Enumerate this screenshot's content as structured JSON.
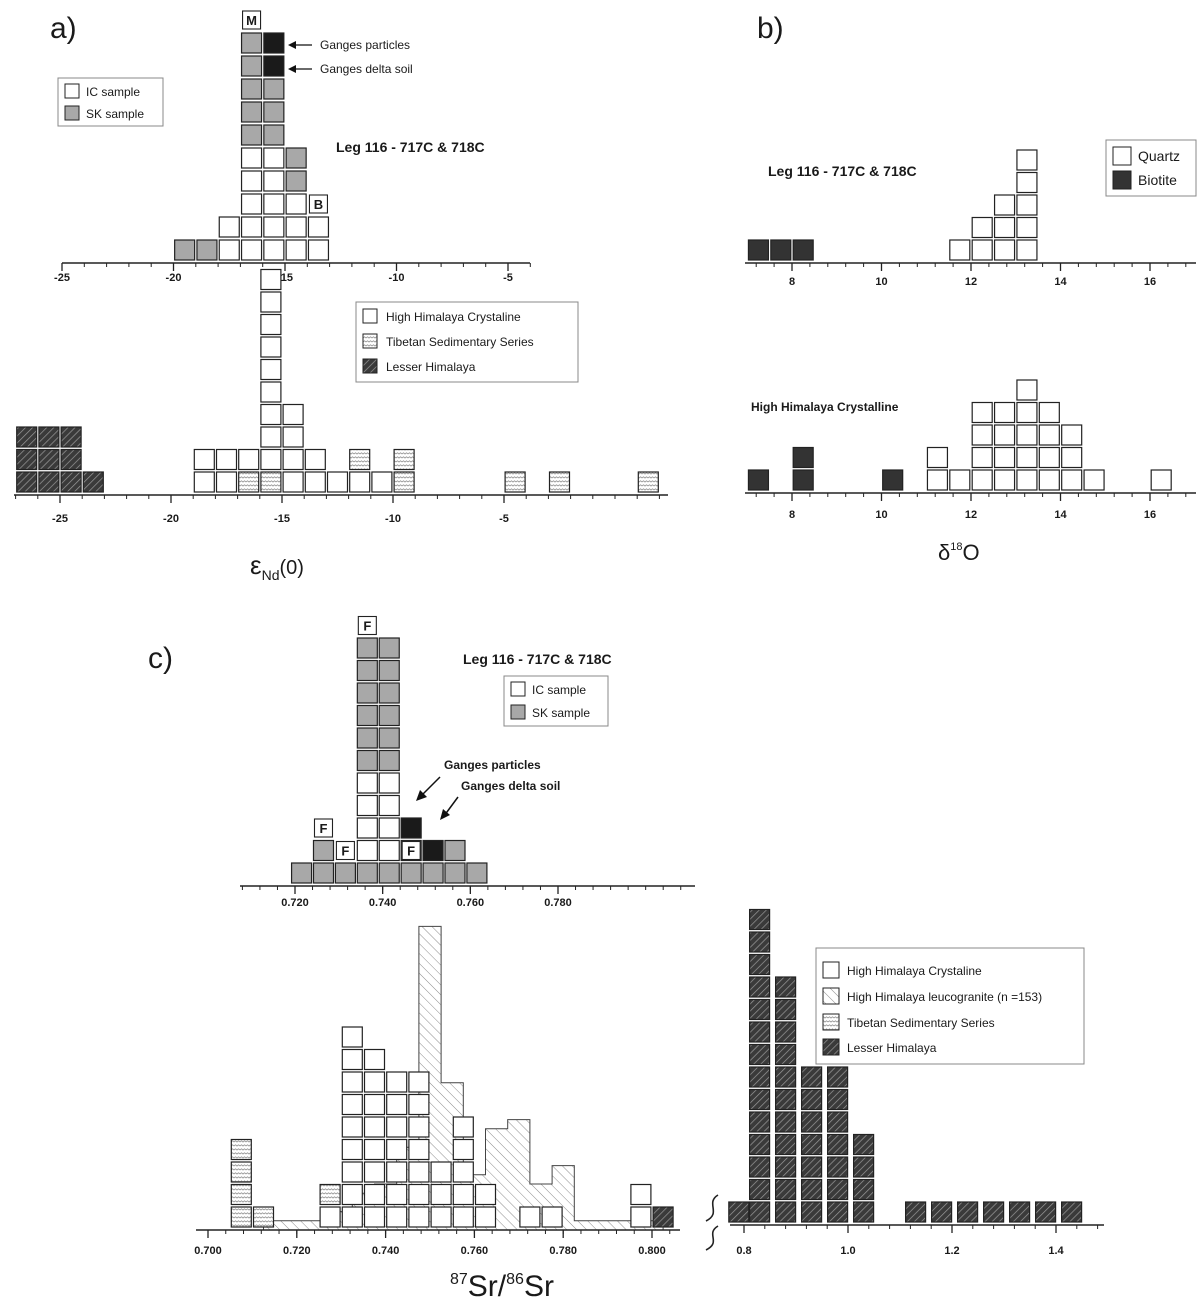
{
  "colors": {
    "open": "#ffffff",
    "sk": "#a8a8a8",
    "dark": "#1a1a1a",
    "stroke": "#222222",
    "hatch_dark_bg": "#3a3a3a",
    "hatch_light": "#bbbbbb"
  },
  "chart_data": [
    {
      "panel": "a",
      "label": "a)",
      "type": "bar",
      "title": "Leg 116 - 717C & 718C",
      "xlabel": "ε",
      "xlabel_sub": "Nd",
      "xlabel_suffix": "(0)",
      "upper": {
        "xlim": [
          -25,
          -4
        ],
        "ticks": [
          -25,
          -20,
          -15,
          -10,
          -5
        ],
        "tick_labels": [
          "-25",
          "-20",
          "-15",
          "-10",
          "-5"
        ],
        "legend": [
          "IC sample",
          "SK sample"
        ],
        "columns": [
          {
            "x": -19.5,
            "stack": [
              "sk"
            ]
          },
          {
            "x": -18.5,
            "stack": [
              "sk"
            ]
          },
          {
            "x": -17.5,
            "stack": [
              "ic",
              "ic"
            ]
          },
          {
            "x": -16.5,
            "stack": [
              "ic",
              "ic",
              "ic",
              "ic",
              "ic",
              "sk",
              "sk",
              "sk",
              "sk",
              "sk"
            ]
          },
          {
            "x": -15.5,
            "stack": [
              "ic",
              "ic",
              "ic",
              "ic",
              "ic",
              "sk",
              "sk",
              "sk",
              "dark",
              "dark"
            ]
          },
          {
            "x": -14.5,
            "stack": [
              "ic",
              "ic",
              "ic",
              "sk",
              "sk"
            ]
          },
          {
            "x": -13.5,
            "stack": [
              "ic",
              "ic"
            ]
          }
        ],
        "labels": [
          {
            "text": "M",
            "x": -16.5,
            "level": 10
          },
          {
            "text": "B",
            "x": -13.5,
            "level": 2
          }
        ],
        "annotations": [
          "Ganges particles",
          "Ganges delta soil"
        ]
      },
      "lower": {
        "xlim": [
          -27,
          0
        ],
        "ticks": [
          -25,
          -20,
          -15,
          -10,
          -5
        ],
        "tick_labels": [
          "-25",
          "-20",
          "-15",
          "-10",
          "-5"
        ],
        "legend": [
          "High Himalaya Crystaline",
          "Tibetan Sedimentary Series",
          "Lesser Himalaya"
        ],
        "columns": [
          {
            "x": -26.5,
            "stack": [
              "lh",
              "lh",
              "lh"
            ]
          },
          {
            "x": -25.5,
            "stack": [
              "lh",
              "lh",
              "lh"
            ]
          },
          {
            "x": -24.5,
            "stack": [
              "lh",
              "lh",
              "lh"
            ]
          },
          {
            "x": -23.5,
            "stack": [
              "lh"
            ]
          },
          {
            "x": -18.5,
            "stack": [
              "hhc",
              "hhc"
            ]
          },
          {
            "x": -17.5,
            "stack": [
              "hhc",
              "hhc"
            ]
          },
          {
            "x": -16.5,
            "stack": [
              "tss",
              "hhc"
            ]
          },
          {
            "x": -15.5,
            "stack": [
              "tss",
              "hhc"
            ]
          },
          {
            "x": -15.5,
            "stack": [
              "hhc",
              "hhc",
              "hhc",
              "hhc",
              "hhc",
              "hhc",
              "hhc",
              "hhc"
            ],
            "shift": 0
          },
          {
            "x": -14.5,
            "stack": [
              "hhc",
              "hhc",
              "hhc",
              "hhc"
            ]
          },
          {
            "x": -13.5,
            "stack": [
              "hhc",
              "hhc"
            ]
          },
          {
            "x": -12.5,
            "stack": [
              "hhc"
            ]
          },
          {
            "x": -11.5,
            "stack": [
              "hhc",
              "tss"
            ]
          },
          {
            "x": -10.5,
            "stack": [
              "hhc"
            ]
          },
          {
            "x": -9.5,
            "stack": [
              "tss",
              "tss"
            ]
          },
          {
            "x": -4.5,
            "stack": [
              "tss"
            ]
          },
          {
            "x": -2.5,
            "stack": [
              "tss"
            ]
          },
          {
            "x": 1.5,
            "stack": [
              "tss"
            ]
          }
        ]
      }
    },
    {
      "panel": "b",
      "label": "b)",
      "type": "bar",
      "title": "Leg 116 - 717C & 718C",
      "xlabel": "δ",
      "xlabel_sup": "18",
      "xlabel_suffix": "O",
      "upper": {
        "xlim": [
          7,
          17
        ],
        "ticks": [
          8,
          10,
          12,
          14,
          16
        ],
        "tick_labels": [
          "8",
          "10",
          "12",
          "14",
          "16"
        ],
        "legend": [
          "Quartz",
          "Biotite"
        ],
        "columns": [
          {
            "x": 7.25,
            "stack": [
              "bio"
            ]
          },
          {
            "x": 7.75,
            "stack": [
              "bio"
            ]
          },
          {
            "x": 8.25,
            "stack": [
              "bio"
            ]
          },
          {
            "x": 11.75,
            "stack": [
              "qz"
            ]
          },
          {
            "x": 12.25,
            "stack": [
              "qz",
              "qz"
            ]
          },
          {
            "x": 12.75,
            "stack": [
              "qz",
              "qz",
              "qz"
            ]
          },
          {
            "x": 13.25,
            "stack": [
              "qz",
              "qz",
              "qz",
              "qz",
              "qz"
            ]
          }
        ]
      },
      "lower": {
        "title": "High Himalaya Crystalline",
        "xlim": [
          7,
          17
        ],
        "ticks": [
          8,
          10,
          12,
          14,
          16
        ],
        "tick_labels": [
          "8",
          "10",
          "12",
          "14",
          "16"
        ],
        "columns": [
          {
            "x": 7.25,
            "stack": [
              "bio"
            ]
          },
          {
            "x": 8.25,
            "stack": [
              "bio",
              "bio"
            ]
          },
          {
            "x": 10.25,
            "stack": [
              "bio"
            ]
          },
          {
            "x": 11.25,
            "stack": [
              "qz",
              "qz"
            ]
          },
          {
            "x": 11.75,
            "stack": [
              "qz"
            ]
          },
          {
            "x": 12.25,
            "stack": [
              "qz",
              "qz",
              "qz",
              "qz"
            ]
          },
          {
            "x": 12.75,
            "stack": [
              "qz",
              "qz",
              "qz",
              "qz"
            ]
          },
          {
            "x": 13.25,
            "stack": [
              "qz",
              "qz",
              "qz",
              "qz",
              "qz"
            ]
          },
          {
            "x": 13.75,
            "stack": [
              "qz",
              "qz",
              "qz",
              "qz"
            ]
          },
          {
            "x": 14.25,
            "stack": [
              "qz",
              "qz",
              "qz"
            ]
          },
          {
            "x": 14.75,
            "stack": [
              "qz"
            ]
          },
          {
            "x": 16.25,
            "stack": [
              "qz"
            ]
          }
        ]
      }
    },
    {
      "panel": "c",
      "label": "c)",
      "type": "bar",
      "title": "Leg 116 - 717C & 718C",
      "xlabel": "87Sr/86Sr",
      "xlabel_sup1": "87",
      "xlabel_mid": "Sr/",
      "xlabel_sup2": "86",
      "xlabel_end": "Sr",
      "upper": {
        "xlim": [
          0.71,
          0.8
        ],
        "ticks": [
          0.72,
          0.74,
          0.76,
          0.78
        ],
        "tick_labels": [
          "0.720",
          "0.740",
          "0.760",
          "0.780"
        ],
        "legend": [
          "IC sample",
          "SK sample"
        ],
        "columns": [
          {
            "x": 0.7215,
            "stack": [
              "sk"
            ]
          },
          {
            "x": 0.7265,
            "stack": [
              "sk",
              "sk"
            ]
          },
          {
            "x": 0.7315,
            "stack": [
              "sk"
            ]
          },
          {
            "x": 0.7365,
            "stack": [
              "sk",
              "ic",
              "ic",
              "ic",
              "ic",
              "sk",
              "sk",
              "sk",
              "sk",
              "sk",
              "sk"
            ]
          },
          {
            "x": 0.7415,
            "stack": [
              "sk",
              "ic",
              "ic",
              "ic",
              "ic",
              "sk",
              "sk",
              "sk",
              "sk",
              "sk",
              "sk"
            ]
          },
          {
            "x": 0.7465,
            "stack": [
              "sk",
              "sk",
              "dark"
            ]
          },
          {
            "x": 0.7515,
            "stack": [
              "sk",
              "dark"
            ]
          },
          {
            "x": 0.7565,
            "stack": [
              "sk",
              "sk"
            ]
          },
          {
            "x": 0.7615,
            "stack": [
              "sk"
            ]
          }
        ],
        "labels": [
          {
            "text": "F",
            "x": 0.7265,
            "level": 2
          },
          {
            "text": "F",
            "x": 0.7315,
            "level": 1
          },
          {
            "text": "F",
            "x": 0.7365,
            "level": 11
          },
          {
            "text": "F",
            "x": 0.7465,
            "level": 1
          }
        ],
        "annotations": [
          "Ganges particles",
          "Ganges delta soil"
        ]
      },
      "lower": {
        "xlim": [
          0.7,
          0.805
        ],
        "ticks": [
          0.7,
          0.72,
          0.74,
          0.76,
          0.78,
          0.8
        ],
        "tick_labels": [
          "0.700",
          "0.720",
          "0.740",
          "0.760",
          "0.780",
          "0.800"
        ],
        "ticks2": [
          0.8,
          1.0,
          1.2,
          1.4
        ],
        "tick_labels2": [
          "0.8",
          "1.0",
          "1.2",
          "1.4"
        ],
        "legend": [
          "High Himalaya Crystaline",
          "High Himalaya leucogranite (n =153)",
          "Tibetan Sedimentary Series",
          "Lesser Himalaya"
        ],
        "leucogranite_histogram": {
          "bin_width": 0.005,
          "bins_start": [
            0.7125,
            0.7175,
            0.7225,
            0.7275,
            0.7325,
            0.7375,
            0.7425,
            0.7475,
            0.7525,
            0.7575,
            0.7625,
            0.7675,
            0.7725,
            0.7775,
            0.7825,
            0.7875,
            0.7925,
            0.7975
          ],
          "counts": [
            1,
            1,
            1,
            2,
            4,
            5,
            9,
            33,
            16,
            6,
            11,
            12,
            5,
            7,
            1,
            1,
            1,
            1
          ]
        },
        "columns": [
          {
            "x": 0.7075,
            "stack": [
              "tss",
              "tss",
              "tss",
              "tss"
            ]
          },
          {
            "x": 0.7125,
            "stack": [
              "tss"
            ]
          },
          {
            "x": 0.7275,
            "stack": [
              "hhc",
              "tss"
            ]
          },
          {
            "x": 0.7325,
            "stack": [
              "hhc",
              "hhc",
              "hhc",
              "hhc",
              "hhc",
              "hhc",
              "hhc",
              "hhc",
              "hhc"
            ]
          },
          {
            "x": 0.7375,
            "stack": [
              "hhc",
              "hhc",
              "hhc",
              "hhc",
              "hhc",
              "hhc",
              "hhc",
              "hhc"
            ]
          },
          {
            "x": 0.7425,
            "stack": [
              "hhc",
              "hhc",
              "hhc",
              "hhc",
              "hhc",
              "hhc",
              "hhc"
            ]
          },
          {
            "x": 0.7475,
            "stack": [
              "hhc",
              "hhc",
              "hhc",
              "hhc",
              "hhc",
              "hhc",
              "hhc"
            ]
          },
          {
            "x": 0.7525,
            "stack": [
              "hhc",
              "hhc",
              "hhc"
            ]
          },
          {
            "x": 0.7575,
            "stack": [
              "hhc",
              "hhc",
              "hhc",
              "hhc",
              "hhc"
            ]
          },
          {
            "x": 0.7625,
            "stack": [
              "hhc",
              "hhc"
            ]
          },
          {
            "x": 0.7725,
            "stack": [
              "hhc"
            ]
          },
          {
            "x": 0.7775,
            "stack": [
              "hhc"
            ]
          },
          {
            "x": 0.7975,
            "stack": [
              "hhc",
              "hhc"
            ]
          },
          {
            "x": 0.8025,
            "stack": [
              "lh"
            ]
          }
        ],
        "columns2": [
          {
            "x": 0.79,
            "stack": [
              "lh"
            ]
          },
          {
            "x": 0.83,
            "stack": [
              "lh",
              "lh",
              "lh",
              "lh",
              "lh",
              "lh",
              "lh",
              "lh",
              "lh",
              "lh",
              "lh",
              "lh",
              "lh",
              "lh"
            ]
          },
          {
            "x": 0.88,
            "stack": [
              "lh",
              "lh",
              "lh",
              "lh",
              "lh",
              "lh",
              "lh",
              "lh",
              "lh",
              "lh",
              "lh"
            ]
          },
          {
            "x": 0.93,
            "stack": [
              "lh",
              "lh",
              "lh",
              "lh",
              "lh",
              "lh",
              "lh"
            ]
          },
          {
            "x": 0.98,
            "stack": [
              "lh",
              "lh",
              "lh",
              "lh",
              "lh",
              "lh",
              "lh"
            ]
          },
          {
            "x": 1.03,
            "stack": [
              "lh",
              "lh",
              "lh",
              "lh"
            ]
          },
          {
            "x": 1.13,
            "stack": [
              "lh"
            ]
          },
          {
            "x": 1.18,
            "stack": [
              "lh"
            ]
          },
          {
            "x": 1.23,
            "stack": [
              "lh"
            ]
          },
          {
            "x": 1.28,
            "stack": [
              "lh"
            ]
          },
          {
            "x": 1.33,
            "stack": [
              "lh"
            ]
          },
          {
            "x": 1.38,
            "stack": [
              "lh"
            ]
          },
          {
            "x": 1.43,
            "stack": [
              "lh"
            ]
          }
        ]
      }
    }
  ]
}
